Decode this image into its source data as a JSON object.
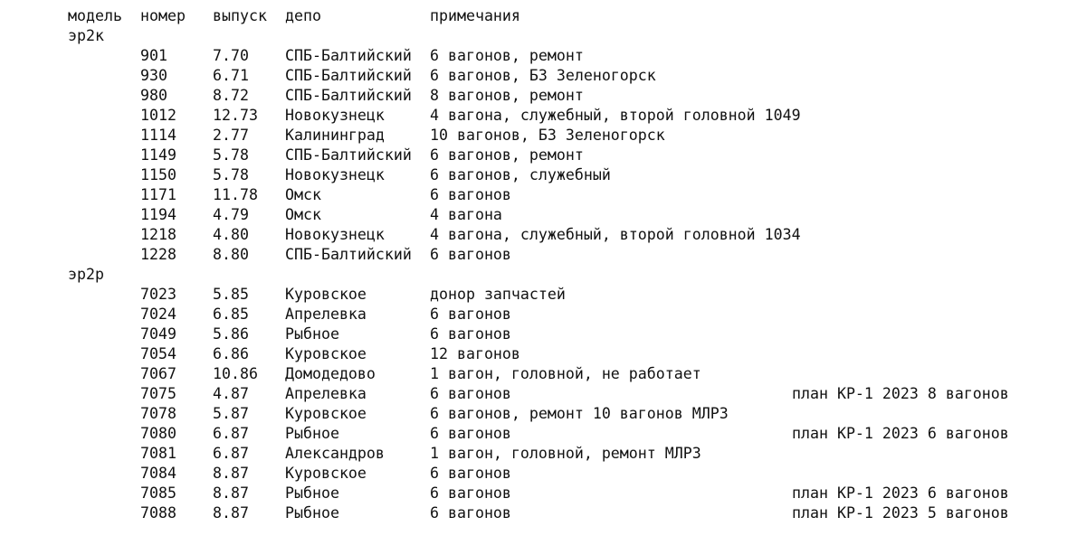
{
  "header": {
    "model": "модель",
    "number": "номер",
    "release": "выпуск",
    "depot": "депо",
    "notes": "примечания"
  },
  "groups": [
    {
      "model": "эр2к",
      "rows": [
        {
          "number": "901",
          "release": "7.70",
          "depot": "СПБ-Балтийский",
          "notes": "6 вагонов, ремонт",
          "plan": ""
        },
        {
          "number": "930",
          "release": "6.71",
          "depot": "СПБ-Балтийский",
          "notes": "6 вагонов, БЗ Зеленогорск",
          "plan": ""
        },
        {
          "number": "980",
          "release": "8.72",
          "depot": "СПБ-Балтийский",
          "notes": "8 вагонов, ремонт",
          "plan": ""
        },
        {
          "number": "1012",
          "release": "12.73",
          "depot": "Новокузнецк",
          "notes": "4 вагона, служебный, второй головной 1049",
          "plan": ""
        },
        {
          "number": "1114",
          "release": "2.77",
          "depot": "Калининград",
          "notes": "10 вагонов, БЗ Зеленогорск",
          "plan": ""
        },
        {
          "number": "1149",
          "release": "5.78",
          "depot": "СПБ-Балтийский",
          "notes": "6 вагонов, ремонт",
          "plan": ""
        },
        {
          "number": "1150",
          "release": "5.78",
          "depot": "Новокузнецк",
          "notes": "6 вагонов, служебный",
          "plan": ""
        },
        {
          "number": "1171",
          "release": "11.78",
          "depot": "Омск",
          "notes": "6 вагонов",
          "plan": ""
        },
        {
          "number": "1194",
          "release": "4.79",
          "depot": "Омск",
          "notes": "4 вагона",
          "plan": ""
        },
        {
          "number": "1218",
          "release": "4.80",
          "depot": "Новокузнецк",
          "notes": "4 вагона, служебный, второй головной 1034",
          "plan": ""
        },
        {
          "number": "1228",
          "release": "8.80",
          "depot": "СПБ-Балтийский",
          "notes": "6 вагонов",
          "plan": ""
        }
      ]
    },
    {
      "model": "эр2р",
      "rows": [
        {
          "number": "7023",
          "release": "5.85",
          "depot": "Куровское",
          "notes": "донор запчастей",
          "plan": ""
        },
        {
          "number": "7024",
          "release": "6.85",
          "depot": "Апрелевка",
          "notes": "6 вагонов",
          "plan": ""
        },
        {
          "number": "7049",
          "release": "5.86",
          "depot": "Рыбное",
          "notes": "6 вагонов",
          "plan": ""
        },
        {
          "number": "7054",
          "release": "6.86",
          "depot": "Куровское",
          "notes": "12 вагонов",
          "plan": ""
        },
        {
          "number": "7067",
          "release": "10.86",
          "depot": "Домодедово",
          "notes": "1 вагон, головной, не работает",
          "plan": ""
        },
        {
          "number": "7075",
          "release": "4.87",
          "depot": "Апрелевка",
          "notes": "6 вагонов",
          "plan": "план КР-1 2023 8 вагонов"
        },
        {
          "number": "7078",
          "release": "5.87",
          "depot": "Куровское",
          "notes": "6 вагонов, ремонт 10 вагонов МЛРЗ",
          "plan": ""
        },
        {
          "number": "7080",
          "release": "6.87",
          "depot": "Рыбное",
          "notes": "6 вагонов",
          "plan": "план КР-1 2023 6 вагонов"
        },
        {
          "number": "7081",
          "release": "6.87",
          "depot": "Александров",
          "notes": "1 вагон, головной, ремонт МЛРЗ",
          "plan": ""
        },
        {
          "number": "7084",
          "release": "8.87",
          "depot": "Куровское",
          "notes": "6 вагонов",
          "plan": ""
        },
        {
          "number": "7085",
          "release": "8.87",
          "depot": "Рыбное",
          "notes": "6 вагонов",
          "plan": "план КР-1 2023 6 вагонов"
        },
        {
          "number": "7088",
          "release": "8.87",
          "depot": "Рыбное",
          "notes": "6 вагонов",
          "plan": "план КР-1 2023 5 вагонов"
        }
      ]
    }
  ]
}
